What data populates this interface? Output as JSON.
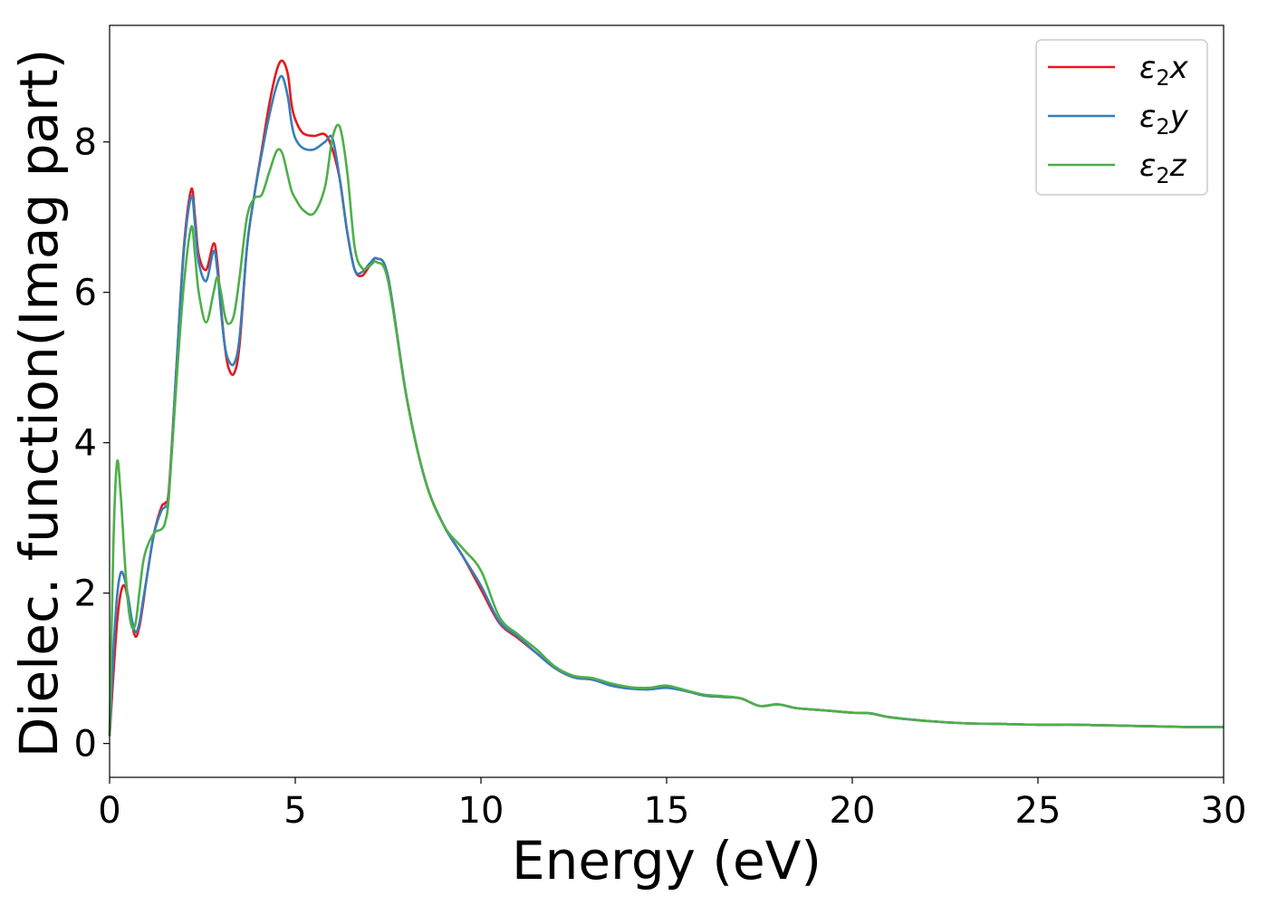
{
  "chart_data": {
    "type": "line",
    "xlabel": "Energy (eV)",
    "ylabel": "Dielec. function(Imag part)",
    "xlim": [
      0,
      30
    ],
    "ylim": [
      -0.45,
      9.55
    ],
    "xticks": [
      0,
      5,
      10,
      15,
      20,
      25,
      30
    ],
    "yticks": [
      0,
      2,
      4,
      6,
      8
    ],
    "grid": false,
    "legend_position": "top-right",
    "series": [
      {
        "name": "ε₂x",
        "legend_base": "ε",
        "legend_sub": "2",
        "legend_suffix": "x",
        "color": "#e41a1c",
        "x": [
          0,
          0.1,
          0.2,
          0.3,
          0.4,
          0.5,
          0.6,
          0.7,
          0.8,
          0.9,
          1.0,
          1.2,
          1.4,
          1.5,
          1.6,
          1.8,
          2.0,
          2.2,
          2.3,
          2.4,
          2.6,
          2.8,
          2.9,
          3.0,
          3.1,
          3.2,
          3.35,
          3.5,
          3.7,
          3.9,
          4.1,
          4.3,
          4.5,
          4.65,
          4.8,
          4.9,
          5.0,
          5.2,
          5.5,
          5.8,
          6.0,
          6.2,
          6.4,
          6.6,
          6.8,
          7.0,
          7.2,
          7.5,
          8.0,
          8.5,
          9.0,
          9.5,
          10.0,
          10.5,
          11.0,
          11.5,
          12.0,
          12.5,
          13.0,
          13.5,
          14.0,
          14.5,
          15.0,
          15.5,
          16.0,
          16.5,
          17.0,
          17.5,
          18.0,
          18.5,
          19.0,
          19.5,
          20.0,
          20.5,
          21.0,
          22.0,
          23.0,
          24.0,
          25.0,
          26.0,
          27.0,
          28.0,
          29.0,
          30.0
        ],
        "y": [
          0.1,
          0.9,
          1.6,
          2.0,
          2.1,
          1.9,
          1.6,
          1.42,
          1.55,
          1.85,
          2.2,
          2.8,
          3.15,
          3.2,
          3.4,
          5.0,
          6.6,
          7.37,
          7.0,
          6.5,
          6.3,
          6.65,
          6.4,
          5.8,
          5.3,
          5.0,
          4.92,
          5.3,
          6.6,
          7.3,
          7.9,
          8.5,
          8.95,
          9.08,
          8.9,
          8.5,
          8.3,
          8.12,
          8.08,
          8.1,
          7.9,
          7.5,
          6.8,
          6.3,
          6.22,
          6.35,
          6.45,
          6.2,
          4.6,
          3.5,
          2.9,
          2.5,
          2.05,
          1.6,
          1.4,
          1.2,
          1.0,
          0.88,
          0.85,
          0.78,
          0.74,
          0.72,
          0.75,
          0.7,
          0.64,
          0.62,
          0.6,
          0.5,
          0.52,
          0.47,
          0.45,
          0.43,
          0.41,
          0.4,
          0.35,
          0.3,
          0.27,
          0.26,
          0.25,
          0.25,
          0.24,
          0.23,
          0.22,
          0.22
        ]
      },
      {
        "name": "ε₂y",
        "legend_base": "ε",
        "legend_sub": "2",
        "legend_suffix": "y",
        "color": "#377eb8",
        "x": [
          0,
          0.1,
          0.2,
          0.3,
          0.4,
          0.5,
          0.6,
          0.7,
          0.8,
          0.9,
          1.0,
          1.2,
          1.4,
          1.5,
          1.6,
          1.8,
          2.0,
          2.2,
          2.3,
          2.4,
          2.6,
          2.8,
          2.9,
          3.0,
          3.1,
          3.2,
          3.35,
          3.5,
          3.7,
          3.9,
          4.1,
          4.3,
          4.5,
          4.65,
          4.8,
          4.9,
          5.0,
          5.2,
          5.5,
          5.8,
          6.0,
          6.2,
          6.4,
          6.6,
          6.8,
          7.0,
          7.2,
          7.5,
          8.0,
          8.5,
          9.0,
          9.5,
          10.0,
          10.5,
          11.0,
          11.5,
          12.0,
          12.5,
          13.0,
          13.5,
          14.0,
          14.5,
          15.0,
          15.5,
          16.0,
          16.5,
          17.0,
          17.5,
          18.0,
          18.5,
          19.0,
          19.5,
          20.0,
          20.5,
          21.0,
          22.0,
          23.0,
          24.0,
          25.0,
          26.0,
          27.0,
          28.0,
          29.0,
          30.0
        ],
        "y": [
          0.1,
          1.2,
          1.95,
          2.27,
          2.2,
          1.95,
          1.65,
          1.48,
          1.6,
          1.9,
          2.2,
          2.8,
          3.1,
          3.15,
          3.35,
          5.0,
          6.55,
          7.28,
          6.9,
          6.4,
          6.15,
          6.55,
          6.3,
          5.75,
          5.3,
          5.1,
          5.05,
          5.4,
          6.6,
          7.3,
          7.85,
          8.35,
          8.75,
          8.87,
          8.6,
          8.25,
          8.05,
          7.92,
          7.9,
          8.0,
          8.05,
          7.5,
          6.8,
          6.3,
          6.27,
          6.38,
          6.45,
          6.2,
          4.6,
          3.5,
          2.9,
          2.5,
          2.1,
          1.62,
          1.42,
          1.2,
          1.0,
          0.88,
          0.85,
          0.77,
          0.73,
          0.72,
          0.74,
          0.7,
          0.64,
          0.62,
          0.6,
          0.5,
          0.52,
          0.47,
          0.45,
          0.43,
          0.41,
          0.4,
          0.35,
          0.3,
          0.27,
          0.26,
          0.25,
          0.25,
          0.24,
          0.23,
          0.22,
          0.22
        ]
      },
      {
        "name": "ε₂z",
        "legend_base": "ε",
        "legend_sub": "2",
        "legend_suffix": "z",
        "color": "#4daf4a",
        "x": [
          0,
          0.1,
          0.2,
          0.3,
          0.4,
          0.5,
          0.6,
          0.7,
          0.8,
          0.9,
          1.0,
          1.2,
          1.4,
          1.5,
          1.6,
          1.8,
          2.0,
          2.2,
          2.3,
          2.4,
          2.6,
          2.8,
          2.9,
          3.0,
          3.1,
          3.2,
          3.35,
          3.5,
          3.7,
          3.9,
          4.1,
          4.3,
          4.5,
          4.65,
          4.8,
          4.9,
          5.0,
          5.2,
          5.5,
          5.8,
          6.0,
          6.2,
          6.4,
          6.6,
          6.8,
          7.0,
          7.2,
          7.5,
          8.0,
          8.5,
          9.0,
          9.5,
          10.0,
          10.5,
          11.0,
          11.5,
          12.0,
          12.5,
          13.0,
          13.5,
          14.0,
          14.5,
          15.0,
          15.5,
          16.0,
          16.5,
          17.0,
          17.5,
          18.0,
          18.5,
          19.0,
          19.5,
          20.0,
          20.5,
          21.0,
          22.0,
          23.0,
          24.0,
          25.0,
          26.0,
          27.0,
          28.0,
          29.0,
          30.0
        ],
        "y": [
          0.1,
          2.6,
          3.74,
          3.3,
          2.5,
          1.85,
          1.55,
          1.6,
          2.0,
          2.4,
          2.6,
          2.8,
          2.85,
          2.95,
          3.3,
          4.8,
          6.1,
          6.87,
          6.5,
          6.0,
          5.6,
          6.0,
          6.2,
          6.0,
          5.7,
          5.58,
          5.7,
          6.2,
          7.0,
          7.25,
          7.3,
          7.6,
          7.88,
          7.85,
          7.55,
          7.35,
          7.25,
          7.1,
          7.05,
          7.4,
          8.05,
          8.2,
          7.6,
          6.6,
          6.32,
          6.35,
          6.4,
          6.15,
          4.6,
          3.5,
          2.9,
          2.6,
          2.3,
          1.68,
          1.45,
          1.25,
          1.02,
          0.9,
          0.87,
          0.8,
          0.75,
          0.74,
          0.77,
          0.71,
          0.65,
          0.63,
          0.6,
          0.5,
          0.52,
          0.47,
          0.45,
          0.43,
          0.41,
          0.4,
          0.35,
          0.3,
          0.27,
          0.26,
          0.25,
          0.25,
          0.24,
          0.23,
          0.22,
          0.22
        ]
      }
    ]
  }
}
